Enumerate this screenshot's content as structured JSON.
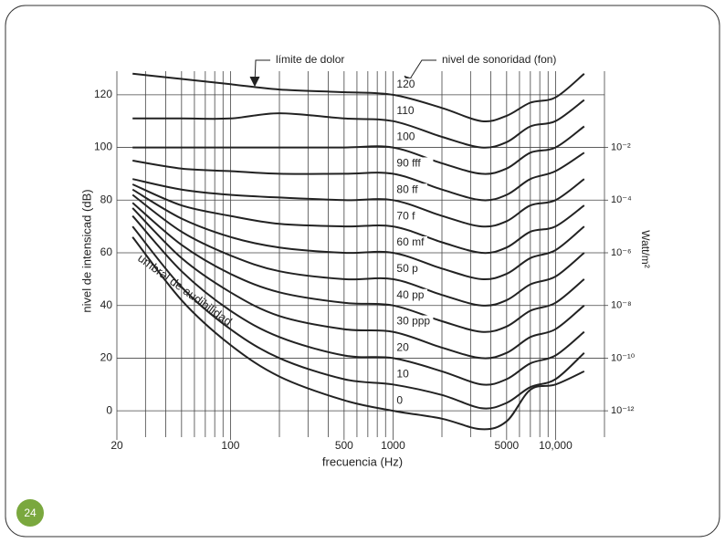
{
  "chart_data": {
    "type": "line",
    "xlabel": "frecuencia (Hz)",
    "ylabel": "nivel de intensicad (dB)",
    "y2label": "Watt/m²",
    "annotations": [
      "límite de dolor",
      "nivel de sonoridad  (fon)",
      "umbral de audibilidad"
    ],
    "page_number": "24",
    "xlog": true,
    "y2log": true,
    "grid": true,
    "color": "#222222",
    "xlim": [
      20,
      20000
    ],
    "xticks": [
      20,
      100,
      500,
      1000,
      5000,
      {
        "value": 10000,
        "label": "10,000"
      }
    ],
    "xgrid": [
      20,
      30,
      40,
      50,
      60,
      70,
      80,
      90,
      100,
      200,
      300,
      400,
      500,
      600,
      700,
      800,
      900,
      1000,
      2000,
      3000,
      4000,
      5000,
      6000,
      7000,
      8000,
      9000,
      10000,
      20000
    ],
    "ylim": [
      -10,
      130
    ],
    "yticks": [
      0,
      20,
      40,
      60,
      80,
      100,
      120
    ],
    "y2lim": [
      1e-13,
      10
    ],
    "y2ticks": [
      {
        "value": 0.01,
        "label": "10⁻²"
      },
      {
        "value": 0.0001,
        "label": "10⁻⁴"
      },
      {
        "value": 1e-06,
        "label": "10⁻⁶"
      },
      {
        "value": 1e-08,
        "label": "10⁻⁸"
      },
      {
        "value": 1e-10,
        "label": "10⁻¹⁰"
      },
      {
        "value": 1e-12,
        "label": "10⁻¹²"
      }
    ],
    "x": [
      25,
      50,
      100,
      200,
      500,
      1000,
      2000,
      3500,
      5000,
      7000,
      10000,
      15000
    ],
    "series": [
      {
        "name": "120",
        "values": [
          128,
          126,
          124,
          122,
          121,
          120,
          115,
          110,
          112,
          117,
          119,
          128
        ]
      },
      {
        "name": "110",
        "values": [
          111,
          111,
          111,
          113,
          111,
          110,
          104,
          100,
          102,
          108,
          110,
          118
        ]
      },
      {
        "name": "100",
        "values": [
          100,
          100,
          100,
          100,
          100,
          100,
          94,
          90,
          92,
          98,
          100,
          108
        ]
      },
      {
        "name": "90 fff",
        "values": [
          95,
          92,
          91,
          90,
          90,
          90,
          84,
          80,
          82,
          88,
          91,
          98
        ]
      },
      {
        "name": "80 ff",
        "values": [
          88,
          84,
          82,
          81,
          80,
          80,
          74,
          70,
          72,
          78,
          80,
          88
        ]
      },
      {
        "name": "70 f",
        "values": [
          86,
          78,
          74,
          71,
          70,
          70,
          64,
          60,
          62,
          68,
          70,
          78
        ]
      },
      {
        "name": "60 mf",
        "values": [
          84,
          73,
          66,
          62,
          60,
          60,
          54,
          50,
          52,
          58,
          61,
          70
        ]
      },
      {
        "name": "50 p",
        "values": [
          82,
          68,
          59,
          53,
          50,
          50,
          44,
          40,
          42,
          48,
          51,
          60
        ]
      },
      {
        "name": "40 pp",
        "values": [
          79,
          63,
          52,
          45,
          41,
          40,
          34,
          30,
          32,
          38,
          41,
          50
        ]
      },
      {
        "name": "30 ppp",
        "values": [
          77,
          58,
          45,
          36,
          31,
          30,
          24,
          20,
          22,
          28,
          31,
          40
        ]
      },
      {
        "name": "20",
        "values": [
          74,
          53,
          38,
          28,
          21,
          20,
          15,
          10,
          12,
          18,
          21,
          30
        ]
      },
      {
        "name": "10",
        "values": [
          70,
          47,
          31,
          20,
          12,
          10,
          6,
          1,
          3,
          9,
          12,
          22
        ]
      },
      {
        "name": "0",
        "values": [
          66,
          42,
          25,
          13,
          4,
          0,
          -3,
          -7,
          -4,
          8,
          10,
          15
        ]
      }
    ]
  }
}
